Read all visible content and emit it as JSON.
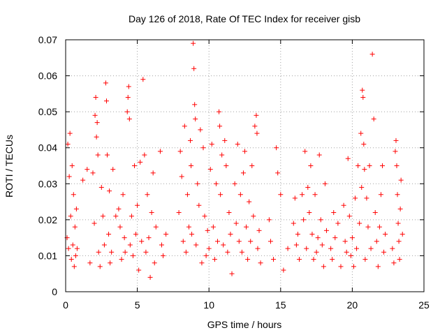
{
  "chart_data": {
    "type": "scatter",
    "title": "Day 126 of 2018, Rate Of TEC Index for receiver gisb",
    "xlabel": "GPS time / hours",
    "ylabel": "ROTI / TECUs",
    "xlim": [
      0,
      25
    ],
    "ylim": [
      0,
      0.07
    ],
    "x_ticks": [
      "0",
      "5",
      "10",
      "15",
      "20",
      "25"
    ],
    "y_ticks": [
      "0",
      "0.01",
      "0.02",
      "0.03",
      "0.04",
      "0.05",
      "0.06",
      "0.07"
    ],
    "grid": true,
    "marker": "+",
    "marker_color": "#ff0000",
    "series": [
      {
        "name": "ROTI",
        "points": [
          [
            0.1,
            0.015
          ],
          [
            0.15,
            0.041
          ],
          [
            0.2,
            0.012
          ],
          [
            0.25,
            0.032
          ],
          [
            0.3,
            0.044
          ],
          [
            0.35,
            0.021
          ],
          [
            0.4,
            0.009
          ],
          [
            0.45,
            0.035
          ],
          [
            0.5,
            0.013
          ],
          [
            0.55,
            0.027
          ],
          [
            0.6,
            0.007
          ],
          [
            0.65,
            0.018
          ],
          [
            0.7,
            0.01
          ],
          [
            0.75,
            0.023
          ],
          [
            0.8,
            0.012
          ],
          [
            1.2,
            0.031
          ],
          [
            1.5,
            0.034
          ],
          [
            1.7,
            0.008
          ],
          [
            1.9,
            0.033
          ],
          [
            2.0,
            0.019
          ],
          [
            2.05,
            0.049
          ],
          [
            2.1,
            0.054
          ],
          [
            2.15,
            0.043
          ],
          [
            2.2,
            0.047
          ],
          [
            2.25,
            0.038
          ],
          [
            2.3,
            0.011
          ],
          [
            2.4,
            0.007
          ],
          [
            2.5,
            0.029
          ],
          [
            2.6,
            0.021
          ],
          [
            2.7,
            0.013
          ],
          [
            2.8,
            0.058
          ],
          [
            2.85,
            0.053
          ],
          [
            2.9,
            0.038
          ],
          [
            3.0,
            0.016
          ],
          [
            3.05,
            0.028
          ],
          [
            3.1,
            0.008
          ],
          [
            3.2,
            0.011
          ],
          [
            3.3,
            0.034
          ],
          [
            3.5,
            0.021
          ],
          [
            3.7,
            0.023
          ],
          [
            3.8,
            0.018
          ],
          [
            3.9,
            0.009
          ],
          [
            4.0,
            0.027
          ],
          [
            4.1,
            0.015
          ],
          [
            4.15,
            0.011
          ],
          [
            4.3,
            0.05
          ],
          [
            4.35,
            0.054
          ],
          [
            4.4,
            0.057
          ],
          [
            4.45,
            0.048
          ],
          [
            4.5,
            0.013
          ],
          [
            4.6,
            0.021
          ],
          [
            4.7,
            0.01
          ],
          [
            4.8,
            0.035
          ],
          [
            4.9,
            0.016
          ],
          [
            5.0,
            0.024
          ],
          [
            5.1,
            0.006
          ],
          [
            5.2,
            0.036
          ],
          [
            5.3,
            0.014
          ],
          [
            5.4,
            0.059
          ],
          [
            5.5,
            0.038
          ],
          [
            5.6,
            0.011
          ],
          [
            5.7,
            0.027
          ],
          [
            5.8,
            0.015
          ],
          [
            5.9,
            0.004
          ],
          [
            6.0,
            0.022
          ],
          [
            6.1,
            0.033
          ],
          [
            6.2,
            0.008
          ],
          [
            6.3,
            0.018
          ],
          [
            6.6,
            0.039
          ],
          [
            6.7,
            0.013
          ],
          [
            6.8,
            0.01
          ],
          [
            7.0,
            0.016
          ],
          [
            7.9,
            0.022
          ],
          [
            8.0,
            0.039
          ],
          [
            8.1,
            0.032
          ],
          [
            8.2,
            0.014
          ],
          [
            8.3,
            0.046
          ],
          [
            8.4,
            0.011
          ],
          [
            8.5,
            0.027
          ],
          [
            8.6,
            0.018
          ],
          [
            8.7,
            0.042
          ],
          [
            8.75,
            0.035
          ],
          [
            8.8,
            0.016
          ],
          [
            8.9,
            0.069
          ],
          [
            8.95,
            0.062
          ],
          [
            9.0,
            0.052
          ],
          [
            9.05,
            0.048
          ],
          [
            9.1,
            0.013
          ],
          [
            9.2,
            0.03
          ],
          [
            9.3,
            0.024
          ],
          [
            9.4,
            0.045
          ],
          [
            9.5,
            0.008
          ],
          [
            9.6,
            0.04
          ],
          [
            9.7,
            0.021
          ],
          [
            9.8,
            0.01
          ],
          [
            9.9,
            0.017
          ],
          [
            10.0,
            0.012
          ],
          [
            10.1,
            0.034
          ],
          [
            10.2,
            0.041
          ],
          [
            10.3,
            0.018
          ],
          [
            10.4,
            0.009
          ],
          [
            10.5,
            0.03
          ],
          [
            10.6,
            0.014
          ],
          [
            10.7,
            0.05
          ],
          [
            10.75,
            0.046
          ],
          [
            10.8,
            0.027
          ],
          [
            10.9,
            0.038
          ],
          [
            11.0,
            0.013
          ],
          [
            11.1,
            0.042
          ],
          [
            11.2,
            0.035
          ],
          [
            11.3,
            0.011
          ],
          [
            11.4,
            0.022
          ],
          [
            11.5,
            0.016
          ],
          [
            11.6,
            0.005
          ],
          [
            11.8,
            0.03
          ],
          [
            11.9,
            0.019
          ],
          [
            12.0,
            0.041
          ],
          [
            12.1,
            0.014
          ],
          [
            12.2,
            0.027
          ],
          [
            12.3,
            0.011
          ],
          [
            12.4,
            0.033
          ],
          [
            12.5,
            0.039
          ],
          [
            12.6,
            0.018
          ],
          [
            12.7,
            0.009
          ],
          [
            12.8,
            0.025
          ],
          [
            12.9,
            0.014
          ],
          [
            13.0,
            0.035
          ],
          [
            13.1,
            0.021
          ],
          [
            13.2,
            0.046
          ],
          [
            13.3,
            0.049
          ],
          [
            13.35,
            0.044
          ],
          [
            13.4,
            0.012
          ],
          [
            13.5,
            0.017
          ],
          [
            13.6,
            0.008
          ],
          [
            14.2,
            0.02
          ],
          [
            14.3,
            0.014
          ],
          [
            14.5,
            0.009
          ],
          [
            14.7,
            0.04
          ],
          [
            14.8,
            0.033
          ],
          [
            15.0,
            0.027
          ],
          [
            15.2,
            0.006
          ],
          [
            15.5,
            0.012
          ],
          [
            15.9,
            0.019
          ],
          [
            16.0,
            0.026
          ],
          [
            16.1,
            0.013
          ],
          [
            16.2,
            0.016
          ],
          [
            16.3,
            0.009
          ],
          [
            16.5,
            0.027
          ],
          [
            16.6,
            0.02
          ],
          [
            16.7,
            0.039
          ],
          [
            16.8,
            0.012
          ],
          [
            16.9,
            0.029
          ],
          [
            17.0,
            0.022
          ],
          [
            17.1,
            0.035
          ],
          [
            17.2,
            0.016
          ],
          [
            17.3,
            0.009
          ],
          [
            17.4,
            0.027
          ],
          [
            17.5,
            0.011
          ],
          [
            17.6,
            0.015
          ],
          [
            17.7,
            0.038
          ],
          [
            17.8,
            0.02
          ],
          [
            17.9,
            0.013
          ],
          [
            18.0,
            0.007
          ],
          [
            18.1,
            0.03
          ],
          [
            18.2,
            0.017
          ],
          [
            18.5,
            0.012
          ],
          [
            18.6,
            0.009
          ],
          [
            18.7,
            0.022
          ],
          [
            18.8,
            0.015
          ],
          [
            19.0,
            0.019
          ],
          [
            19.2,
            0.007
          ],
          [
            19.4,
            0.024
          ],
          [
            19.5,
            0.014
          ],
          [
            19.6,
            0.011
          ],
          [
            19.7,
            0.037
          ],
          [
            19.8,
            0.021
          ],
          [
            19.9,
            0.01
          ],
          [
            20.0,
            0.015
          ],
          [
            20.1,
            0.007
          ],
          [
            20.2,
            0.026
          ],
          [
            20.3,
            0.012
          ],
          [
            20.4,
            0.035
          ],
          [
            20.5,
            0.019
          ],
          [
            20.6,
            0.044
          ],
          [
            20.65,
            0.029
          ],
          [
            20.7,
            0.056
          ],
          [
            20.75,
            0.054
          ],
          [
            20.8,
            0.041
          ],
          [
            20.85,
            0.034
          ],
          [
            20.9,
            0.009
          ],
          [
            21.0,
            0.026
          ],
          [
            21.1,
            0.018
          ],
          [
            21.2,
            0.035
          ],
          [
            21.3,
            0.012
          ],
          [
            21.4,
            0.066
          ],
          [
            21.5,
            0.048
          ],
          [
            21.6,
            0.022
          ],
          [
            21.7,
            0.014
          ],
          [
            21.8,
            0.007
          ],
          [
            21.9,
            0.018
          ],
          [
            22.0,
            0.027
          ],
          [
            22.1,
            0.035
          ],
          [
            22.2,
            0.011
          ],
          [
            22.3,
            0.016
          ],
          [
            22.8,
            0.012
          ],
          [
            22.9,
            0.008
          ],
          [
            23.0,
            0.039
          ],
          [
            23.05,
            0.042
          ],
          [
            23.1,
            0.035
          ],
          [
            23.15,
            0.027
          ],
          [
            23.2,
            0.019
          ],
          [
            23.25,
            0.014
          ],
          [
            23.3,
            0.009
          ],
          [
            23.35,
            0.023
          ],
          [
            23.4,
            0.031
          ],
          [
            23.5,
            0.016
          ]
        ]
      }
    ]
  }
}
